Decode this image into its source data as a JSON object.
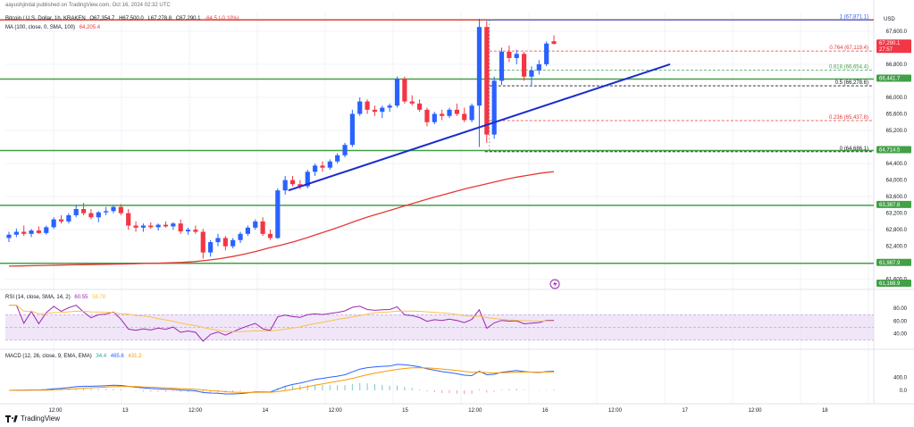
{
  "header": {
    "author_line": "aayushjindal published on TradingView.com, Oct 16, 2024 02:32 UTC",
    "symbol": "Bitcoin / U.S. Dollar, 1h, KRAKEN",
    "open": "O67,354.7",
    "high": "H67,500.0",
    "low": "L67,278.8",
    "close": "C67,290.1",
    "change": "-64.5 (-0.10%)",
    "ma_line": "MA (100, close, 0, SMA, 100)",
    "ma_value": "64,205.4",
    "currency": "USD"
  },
  "rsi_header": {
    "label": "RSI (14, close, SMA, 14, 2)",
    "v1": "60.55",
    "v2": "58.78"
  },
  "macd_header": {
    "label": "MACD (12, 26, close, 9, EMA, EMA)",
    "v1": "34.4",
    "v2": "465.6",
    "v3": "431.2"
  },
  "brand": "TradingView",
  "colors": {
    "up": "#2962ff",
    "down": "#f23645",
    "ma": "#e53935",
    "trend": "#1a2ccf",
    "support": "#43a047",
    "fib": "#e53935",
    "rsi_band": "#e9dcf5",
    "rsi_line": "#9c27b0",
    "rsi_ma": "#f9c349",
    "macd": "#2962ff",
    "signal": "#ff9800"
  },
  "chart_data": {
    "type": "candlestick",
    "x_ticks": [
      "12:00",
      "13",
      "12:00",
      "14",
      "12:00",
      "15",
      "12:00",
      "16",
      "12:00",
      "17",
      "12:00",
      "18"
    ],
    "y_ticks": [
      "67,600.0",
      "67,200.0",
      "66,800.0",
      "66,000.0",
      "65,600.0",
      "65,200.0",
      "64,400.0",
      "64,000.0",
      "63,600.0",
      "63,200.0",
      "62,800.0",
      "62,400.0",
      "61,600.0"
    ],
    "ylim": [
      61400,
      68050
    ],
    "price_badges": [
      {
        "label": "67,290.1",
        "sub": "27:57",
        "value": 67290.1,
        "color": "#f23645"
      },
      {
        "label": "66,441.7",
        "value": 66441.7,
        "color": "#43a047"
      },
      {
        "label": "64,714.5",
        "value": 64714.5,
        "color": "#43a047"
      },
      {
        "label": "63,387.8",
        "value": 63387.8,
        "color": "#43a047"
      },
      {
        "label": "61,987.9",
        "value": 61987.9,
        "color": "#43a047"
      },
      {
        "label": "61,168.9",
        "value": 61168.9,
        "color": "#43a047"
      }
    ],
    "support_levels": [
      67871.1,
      66441.7,
      64714.5,
      63387.8,
      61987.9
    ],
    "fib_levels": [
      {
        "label": "1 (67,871.1)",
        "value": 67871.1,
        "color": "#2962ff"
      },
      {
        "label": "0.764 (67,119.4)",
        "value": 67119.4,
        "color": "#e53935"
      },
      {
        "label": "0.618 (66,654.4)",
        "value": 66654.4,
        "color": "#43a047"
      },
      {
        "label": "0.5 (66,278.6)",
        "value": 66278.6,
        "color": "#131722"
      },
      {
        "label": "0.236 (65,437.8)",
        "value": 65437.8,
        "color": "#e53935"
      },
      {
        "label": "0 (64,686.1)",
        "value": 64686.1,
        "color": "#131722"
      }
    ],
    "trendline": {
      "start": [
        0,
        63750
      ],
      "end": [
        0,
        66800
      ]
    },
    "ma_values": [
      61920,
      61925,
      61932,
      61938,
      61945,
      61950,
      61955,
      61960,
      61965,
      61970,
      61975,
      61985,
      61990,
      62000,
      62010,
      62030,
      62060,
      62100,
      62150,
      62210,
      62280,
      62360,
      62430,
      62510,
      62600,
      62700,
      62800,
      62900,
      63010,
      63110,
      63200,
      63290,
      63380,
      63470,
      63560,
      63640,
      63720,
      63800,
      63870,
      63940,
      64010,
      64070,
      64120,
      64170,
      64205
    ],
    "candles": [
      {
        "o": 62600,
        "h": 62750,
        "l": 62500,
        "c": 62680
      },
      {
        "o": 62680,
        "h": 62830,
        "l": 62620,
        "c": 62750
      },
      {
        "o": 62750,
        "h": 62900,
        "l": 62650,
        "c": 62700
      },
      {
        "o": 62700,
        "h": 62820,
        "l": 62620,
        "c": 62780
      },
      {
        "o": 62780,
        "h": 62880,
        "l": 62700,
        "c": 62720
      },
      {
        "o": 62720,
        "h": 62900,
        "l": 62680,
        "c": 62860
      },
      {
        "o": 62860,
        "h": 63100,
        "l": 62820,
        "c": 63050
      },
      {
        "o": 63050,
        "h": 63150,
        "l": 62950,
        "c": 63000
      },
      {
        "o": 63000,
        "h": 63200,
        "l": 62950,
        "c": 63150
      },
      {
        "o": 63150,
        "h": 63400,
        "l": 63100,
        "c": 63300
      },
      {
        "o": 63300,
        "h": 63450,
        "l": 63150,
        "c": 63200
      },
      {
        "o": 63200,
        "h": 63300,
        "l": 63050,
        "c": 63100
      },
      {
        "o": 63100,
        "h": 63250,
        "l": 62980,
        "c": 63220
      },
      {
        "o": 63220,
        "h": 63350,
        "l": 63150,
        "c": 63250
      },
      {
        "o": 63250,
        "h": 63400,
        "l": 63200,
        "c": 63350
      },
      {
        "o": 63350,
        "h": 63420,
        "l": 63150,
        "c": 63200
      },
      {
        "o": 63200,
        "h": 63300,
        "l": 62800,
        "c": 62900
      },
      {
        "o": 62900,
        "h": 63000,
        "l": 62750,
        "c": 62850
      },
      {
        "o": 62850,
        "h": 62950,
        "l": 62750,
        "c": 62900
      },
      {
        "o": 62900,
        "h": 62980,
        "l": 62820,
        "c": 62860
      },
      {
        "o": 62860,
        "h": 62950,
        "l": 62780,
        "c": 62920
      },
      {
        "o": 62920,
        "h": 63000,
        "l": 62850,
        "c": 62880
      },
      {
        "o": 62880,
        "h": 62980,
        "l": 62800,
        "c": 62950
      },
      {
        "o": 62950,
        "h": 63050,
        "l": 62700,
        "c": 62760
      },
      {
        "o": 62760,
        "h": 62850,
        "l": 62680,
        "c": 62800
      },
      {
        "o": 62800,
        "h": 62900,
        "l": 62700,
        "c": 62750
      },
      {
        "o": 62750,
        "h": 62820,
        "l": 62100,
        "c": 62250
      },
      {
        "o": 62250,
        "h": 62550,
        "l": 62150,
        "c": 62500
      },
      {
        "o": 62500,
        "h": 62700,
        "l": 62400,
        "c": 62600
      },
      {
        "o": 62600,
        "h": 62650,
        "l": 62300,
        "c": 62400
      },
      {
        "o": 62400,
        "h": 62600,
        "l": 62350,
        "c": 62550
      },
      {
        "o": 62550,
        "h": 62750,
        "l": 62480,
        "c": 62700
      },
      {
        "o": 62700,
        "h": 62900,
        "l": 62650,
        "c": 62850
      },
      {
        "o": 62850,
        "h": 63050,
        "l": 62800,
        "c": 63000
      },
      {
        "o": 63000,
        "h": 63100,
        "l": 62650,
        "c": 62700
      },
      {
        "o": 62700,
        "h": 62800,
        "l": 62550,
        "c": 62600
      },
      {
        "o": 62600,
        "h": 63800,
        "l": 62580,
        "c": 63750
      },
      {
        "o": 63750,
        "h": 64100,
        "l": 63650,
        "c": 64000
      },
      {
        "o": 64000,
        "h": 64100,
        "l": 63850,
        "c": 63900
      },
      {
        "o": 63900,
        "h": 64000,
        "l": 63780,
        "c": 63850
      },
      {
        "o": 63850,
        "h": 64250,
        "l": 63800,
        "c": 64200
      },
      {
        "o": 64200,
        "h": 64400,
        "l": 64100,
        "c": 64350
      },
      {
        "o": 64350,
        "h": 64450,
        "l": 64200,
        "c": 64300
      },
      {
        "o": 64300,
        "h": 64500,
        "l": 64250,
        "c": 64450
      },
      {
        "o": 64450,
        "h": 64650,
        "l": 64400,
        "c": 64600
      },
      {
        "o": 64600,
        "h": 64900,
        "l": 64550,
        "c": 64850
      },
      {
        "o": 64850,
        "h": 65700,
        "l": 64800,
        "c": 65600
      },
      {
        "o": 65600,
        "h": 66000,
        "l": 65550,
        "c": 65900
      },
      {
        "o": 65900,
        "h": 65950,
        "l": 65600,
        "c": 65700
      },
      {
        "o": 65700,
        "h": 65800,
        "l": 65550,
        "c": 65650
      },
      {
        "o": 65650,
        "h": 65800,
        "l": 65500,
        "c": 65750
      },
      {
        "o": 65750,
        "h": 65850,
        "l": 65650,
        "c": 65800
      },
      {
        "o": 65800,
        "h": 66500,
        "l": 65750,
        "c": 66450
      },
      {
        "o": 66450,
        "h": 66500,
        "l": 65850,
        "c": 65900
      },
      {
        "o": 65900,
        "h": 66050,
        "l": 65800,
        "c": 65850
      },
      {
        "o": 65850,
        "h": 65950,
        "l": 65650,
        "c": 65700
      },
      {
        "o": 65700,
        "h": 65750,
        "l": 65300,
        "c": 65400
      },
      {
        "o": 65400,
        "h": 65650,
        "l": 65350,
        "c": 65600
      },
      {
        "o": 65600,
        "h": 65700,
        "l": 65450,
        "c": 65550
      },
      {
        "o": 65550,
        "h": 65750,
        "l": 65500,
        "c": 65700
      },
      {
        "o": 65700,
        "h": 65850,
        "l": 65550,
        "c": 65600
      },
      {
        "o": 65600,
        "h": 65750,
        "l": 65400,
        "c": 65450
      },
      {
        "o": 65450,
        "h": 65850,
        "l": 65400,
        "c": 65800
      },
      {
        "o": 65800,
        "h": 67900,
        "l": 64800,
        "c": 67700
      },
      {
        "o": 67700,
        "h": 67850,
        "l": 64900,
        "c": 65100
      },
      {
        "o": 65100,
        "h": 66500,
        "l": 65000,
        "c": 66400
      },
      {
        "o": 66400,
        "h": 67200,
        "l": 66300,
        "c": 67100
      },
      {
        "o": 67100,
        "h": 67250,
        "l": 66850,
        "c": 66950
      },
      {
        "o": 66950,
        "h": 67150,
        "l": 66800,
        "c": 67050
      },
      {
        "o": 67050,
        "h": 67100,
        "l": 66400,
        "c": 66500
      },
      {
        "o": 66500,
        "h": 66750,
        "l": 66300,
        "c": 66650
      },
      {
        "o": 66650,
        "h": 66900,
        "l": 66550,
        "c": 66800
      },
      {
        "o": 66800,
        "h": 67350,
        "l": 66750,
        "c": 67300
      },
      {
        "o": 67354.7,
        "h": 67500,
        "l": 67278.8,
        "c": 67290.1
      }
    ],
    "rsi": {
      "ylim": [
        20,
        90
      ],
      "y_ticks": [
        "80.00",
        "60.00",
        "40.00"
      ]
    },
    "macd": {
      "ylim": [
        -300,
        900
      ],
      "y_ticks": [
        "400.0",
        "0.0"
      ]
    }
  }
}
